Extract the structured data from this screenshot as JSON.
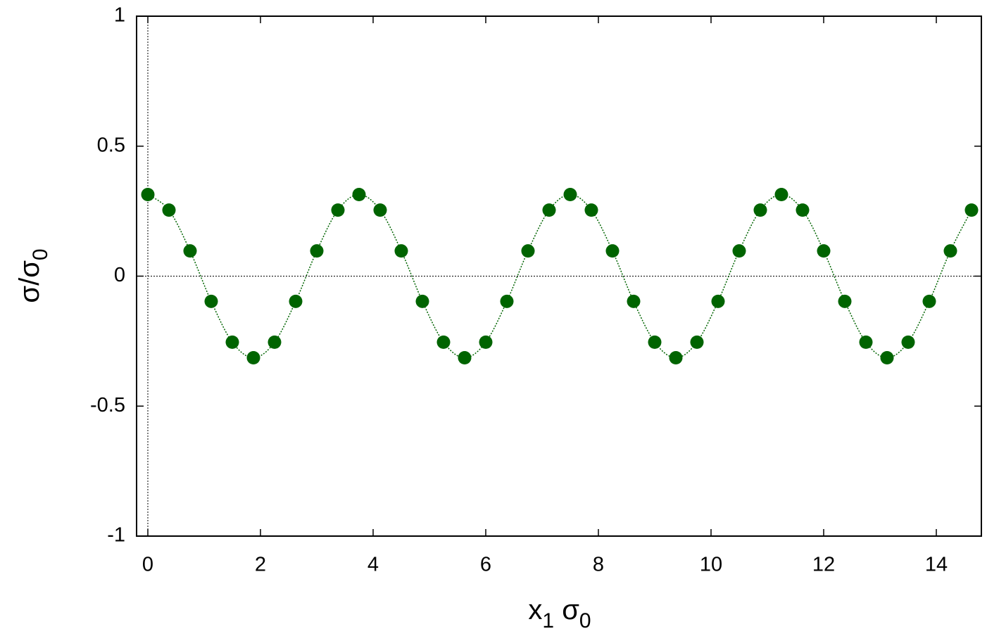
{
  "chart_data": {
    "type": "scatter",
    "xlabel": [
      "x",
      "1",
      " σ",
      "0"
    ],
    "ylabel": [
      "σ/σ",
      "0"
    ],
    "xlim": [
      -0.2,
      14.8
    ],
    "ylim": [
      -1,
      1
    ],
    "xticks": [
      0,
      2,
      4,
      6,
      8,
      10,
      12,
      14
    ],
    "yticks": [
      -1,
      -0.5,
      0,
      0.5,
      1
    ],
    "zero_lines": true,
    "series": [
      {
        "color": "#006400",
        "x": [
          0,
          0.375,
          0.75,
          1.125,
          1.5,
          1.875,
          2.25,
          2.625,
          3,
          3.375,
          3.75,
          4.125,
          4.5,
          4.875,
          5.25,
          5.625,
          6,
          6.375,
          6.75,
          7.125,
          7.5,
          7.875,
          8.25,
          8.625,
          9,
          9.375,
          9.75,
          10.125,
          10.5,
          10.875,
          11.25,
          11.625,
          12,
          12.375,
          12.75,
          13.125,
          13.5,
          13.875,
          14.25,
          14.625
        ],
        "values": [
          0.314,
          0.254,
          0.097,
          -0.097,
          -0.254,
          -0.314,
          -0.254,
          -0.097,
          0.097,
          0.254,
          0.314,
          0.254,
          0.097,
          -0.097,
          -0.254,
          -0.314,
          -0.254,
          -0.097,
          0.097,
          0.254,
          0.314,
          0.254,
          0.097,
          -0.097,
          -0.254,
          -0.314,
          -0.254,
          -0.097,
          0.097,
          0.254,
          0.314,
          0.254,
          0.097,
          -0.097,
          -0.254,
          -0.314,
          -0.254,
          -0.097,
          0.097,
          0.254
        ]
      }
    ]
  }
}
